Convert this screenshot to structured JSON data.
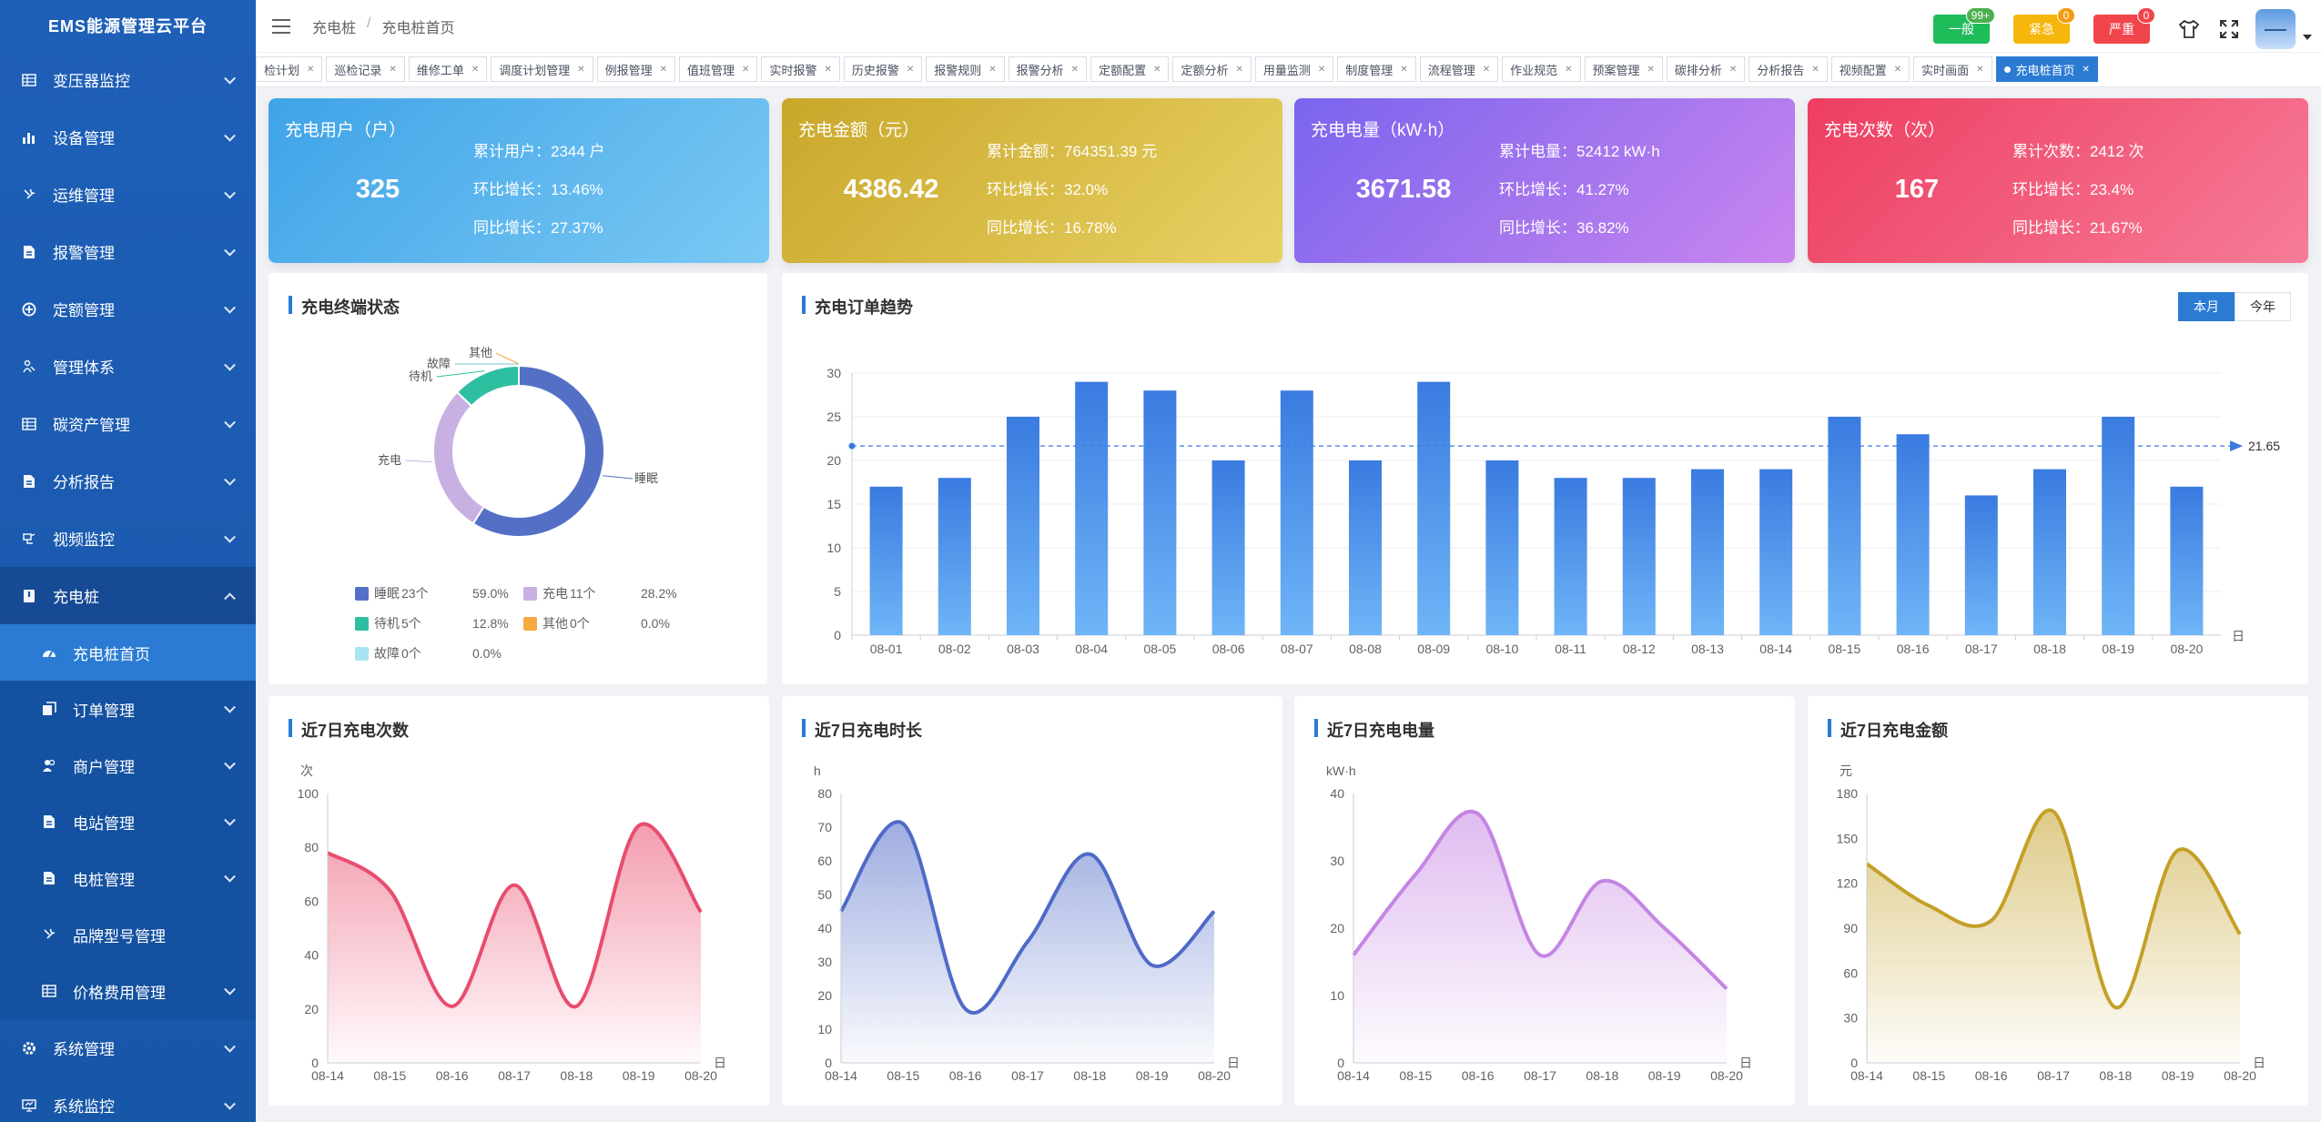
{
  "app": {
    "title": "EMS能源管理云平台"
  },
  "sidebar": {
    "items": [
      {
        "label": "变压器监控",
        "icon": "grid-icon"
      },
      {
        "label": "设备管理",
        "icon": "bar-chart-icon"
      },
      {
        "label": "运维管理",
        "icon": "wrench-icon"
      },
      {
        "label": "报警管理",
        "icon": "document-icon"
      },
      {
        "label": "定额管理",
        "icon": "target-icon"
      },
      {
        "label": "管理体系",
        "icon": "person-icon"
      },
      {
        "label": "碳资产管理",
        "icon": "grid-icon"
      },
      {
        "label": "分析报告",
        "icon": "document-icon"
      },
      {
        "label": "视频监控",
        "icon": "camera-icon"
      },
      {
        "label": "充电桩",
        "icon": "charger-icon"
      },
      {
        "label": "充电桩首页",
        "icon": "dashboard-icon"
      },
      {
        "label": "订单管理",
        "icon": "copy-icon"
      },
      {
        "label": "商户管理",
        "icon": "users-icon"
      },
      {
        "label": "电站管理",
        "icon": "document-icon"
      },
      {
        "label": "电桩管理",
        "icon": "document-icon"
      },
      {
        "label": "品牌型号管理",
        "icon": "wrench-icon"
      },
      {
        "label": "价格费用管理",
        "icon": "grid-icon"
      },
      {
        "label": "系统管理",
        "icon": "gear-icon"
      },
      {
        "label": "系统监控",
        "icon": "monitor-icon"
      }
    ]
  },
  "header": {
    "breadcrumb": [
      "充电桩",
      "充电桩首页"
    ],
    "alarms": [
      {
        "label": "一般",
        "count": "99+",
        "color": "#1fbd5a",
        "badge_color": "#4caf50"
      },
      {
        "label": "紧急",
        "count": "0",
        "color": "#f6b60c",
        "badge_color": "#f39c12"
      },
      {
        "label": "严重",
        "count": "0",
        "color": "#f1454c",
        "badge_color": "#f1454c"
      }
    ]
  },
  "tabs": [
    "检计划",
    "巡检记录",
    "维修工单",
    "调度计划管理",
    "例报管理",
    "值班管理",
    "实时报警",
    "历史报警",
    "报警规则",
    "报警分析",
    "定额配置",
    "定额分析",
    "用量监测",
    "制度管理",
    "流程管理",
    "作业规范",
    "预案管理",
    "碳排分析",
    "分析报告",
    "视频配置",
    "实时画面",
    "充电桩首页"
  ],
  "stats": [
    {
      "title": "充电用户（户）",
      "value": "325",
      "lines": [
        "累计用户：2344 户",
        "环比增长：13.46%",
        "同比增长：27.37%"
      ],
      "from": "#3fa3e8",
      "to": "#7ac9f3"
    },
    {
      "title": "充电金额（元）",
      "value": "4386.42",
      "lines": [
        "累计金额：764351.39 元",
        "环比增长：32.0%",
        "同比增长：16.78%"
      ],
      "from": "#c9a72a",
      "to": "#e8d164"
    },
    {
      "title": "充电电量（kW·h）",
      "value": "3671.58",
      "lines": [
        "累计电量：52412 kW·h",
        "环比增长：41.27%",
        "同比增长：36.82%"
      ],
      "from": "#7a64ee",
      "to": "#c985ef"
    },
    {
      "title": "充电次数（次）",
      "value": "167",
      "lines": [
        "累计次数：2412 次",
        "环比增长：23.4%",
        "同比增长：21.67%"
      ],
      "from": "#ee3e61",
      "to": "#f67c97"
    }
  ],
  "terminal_panel": {
    "title": "充电终端状态"
  },
  "trend_panel": {
    "title": "充电订单趋势",
    "toggle": [
      "本月",
      "今年"
    ]
  },
  "small_panels": [
    {
      "title": "近7日充电次数"
    },
    {
      "title": "近7日充电时长"
    },
    {
      "title": "近7日充电电量"
    },
    {
      "title": "近7日充电金额"
    }
  ],
  "chart_data": [
    {
      "type": "pie",
      "title": "充电终端状态",
      "categories": [
        "睡眠",
        "充电",
        "待机",
        "其他",
        "故障"
      ],
      "values": [
        23,
        11,
        5,
        0,
        0
      ],
      "counts": [
        "23个",
        "11个",
        "5个",
        "0个",
        "0个"
      ],
      "percent": [
        "59.0%",
        "28.2%",
        "12.8%",
        "0.0%",
        "0.0%"
      ],
      "colors": [
        "#5470c6",
        "#c9b0e3",
        "#2ebfa0",
        "#f6a940",
        "#a9e5f0"
      ],
      "donut": true,
      "legend": "bottom"
    },
    {
      "type": "bar",
      "title": "充电订单趋势",
      "categories": [
        "08-01",
        "08-02",
        "08-03",
        "08-04",
        "08-05",
        "08-06",
        "08-07",
        "08-08",
        "08-09",
        "08-10",
        "08-11",
        "08-12",
        "08-13",
        "08-14",
        "08-15",
        "08-16",
        "08-17",
        "08-18",
        "08-19",
        "08-20"
      ],
      "values": [
        17,
        18,
        25,
        29,
        28,
        20,
        28,
        20,
        29,
        20,
        18,
        18,
        19,
        19,
        25,
        23,
        16,
        19,
        25,
        17
      ],
      "xlabel": "日",
      "ylim": [
        0,
        30
      ],
      "yticks": [
        0,
        5,
        10,
        15,
        20,
        25,
        30
      ],
      "average_line": 21.65,
      "average_label": "21.65"
    },
    {
      "type": "area",
      "title": "近7日充电次数",
      "x": [
        "08-14",
        "08-15",
        "08-16",
        "08-17",
        "08-18",
        "08-19",
        "08-20"
      ],
      "values": [
        78,
        64,
        21,
        66,
        21,
        88,
        56
      ],
      "ylabel": "次",
      "xlabel": "日",
      "ylim": [
        0,
        100
      ],
      "yticks": [
        0,
        20,
        40,
        60,
        80,
        100
      ],
      "color": "#e84d6e"
    },
    {
      "type": "area",
      "title": "近7日充电时长",
      "x": [
        "08-14",
        "08-15",
        "08-16",
        "08-17",
        "08-18",
        "08-19",
        "08-20"
      ],
      "values": [
        45,
        71,
        16,
        36,
        62,
        29,
        45
      ],
      "ylabel": "h",
      "xlabel": "日",
      "ylim": [
        0,
        80
      ],
      "yticks": [
        0,
        10,
        20,
        30,
        40,
        50,
        60,
        70,
        80
      ],
      "color": "#4f6ac7"
    },
    {
      "type": "area",
      "title": "近7日充电电量",
      "x": [
        "08-14",
        "08-15",
        "08-16",
        "08-17",
        "08-18",
        "08-19",
        "08-20"
      ],
      "values": [
        16,
        28,
        37,
        16,
        27,
        20,
        11
      ],
      "ylabel": "kW·h",
      "xlabel": "日",
      "ylim": [
        0,
        40
      ],
      "yticks": [
        0,
        10,
        20,
        30,
        40
      ],
      "color": "#c585e3"
    },
    {
      "type": "area",
      "title": "近7日充电金额",
      "x": [
        "08-14",
        "08-15",
        "08-16",
        "08-17",
        "08-18",
        "08-19",
        "08-20"
      ],
      "values": [
        133,
        105,
        95,
        168,
        37,
        142,
        86
      ],
      "ylabel": "元",
      "xlabel": "日",
      "ylim": [
        0,
        180
      ],
      "yticks": [
        0,
        30,
        60,
        90,
        120,
        150,
        180
      ],
      "color": "#c4a028"
    }
  ]
}
